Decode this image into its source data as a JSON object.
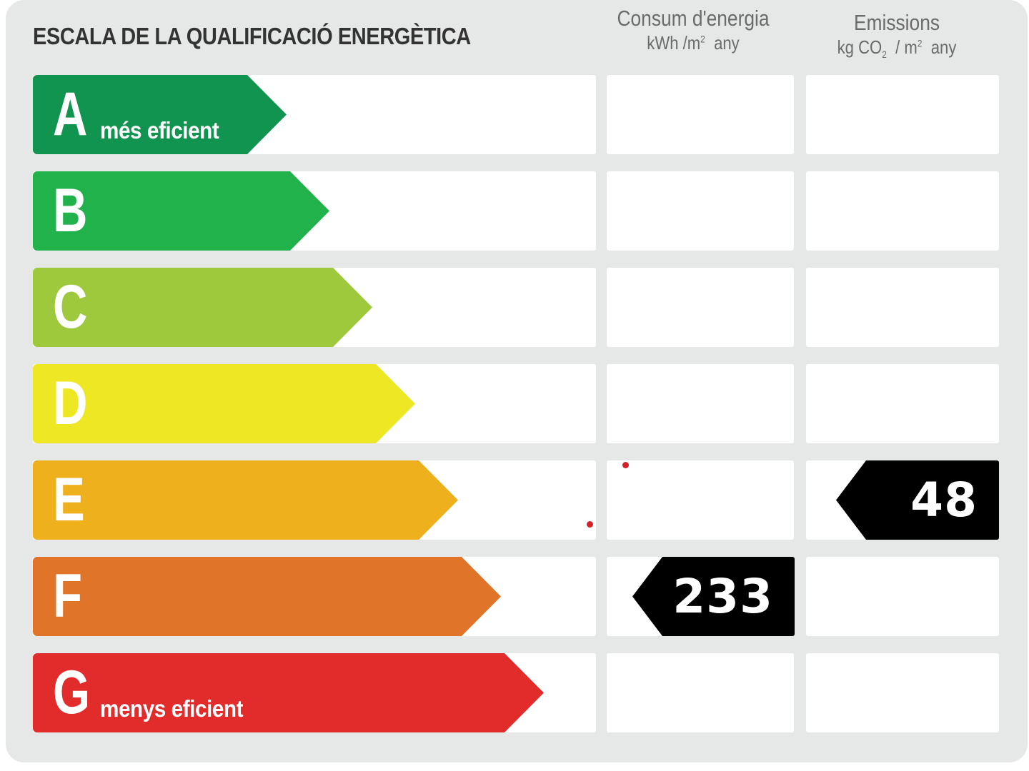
{
  "title": "ESCALA DE LA QUALIFICACIÓ ENERGÈTICA",
  "columns": {
    "energy": {
      "label": "Consum d'energia",
      "unit_base": "kWh /m",
      "unit_sup": "2",
      "unit_suffix": "any"
    },
    "emissions": {
      "label": "Emissions",
      "unit_pre": "kg CO",
      "unit_sub": "2",
      "unit_mid": " / m",
      "unit_sup": "2",
      "unit_suffix": "any"
    }
  },
  "ratings": [
    {
      "letter": "A",
      "label": "més eficient",
      "color": "#11944f"
    },
    {
      "letter": "B",
      "label": "",
      "color": "#22b24b"
    },
    {
      "letter": "C",
      "label": "",
      "color": "#9ec93c"
    },
    {
      "letter": "D",
      "label": "",
      "color": "#ede823"
    },
    {
      "letter": "E",
      "label": "",
      "color": "#eeb01d"
    },
    {
      "letter": "F",
      "label": "",
      "color": "#e07428"
    },
    {
      "letter": "G",
      "label": "menys eficient",
      "color": "#e22b2b"
    }
  ],
  "results": {
    "energy": {
      "value": "233",
      "rating": "F"
    },
    "emissions": {
      "value": "48",
      "rating": "E"
    }
  },
  "colors": {
    "background": "#e6e7e7",
    "cell": "#ffffff",
    "indicator": "#000000",
    "text": "#333333"
  }
}
